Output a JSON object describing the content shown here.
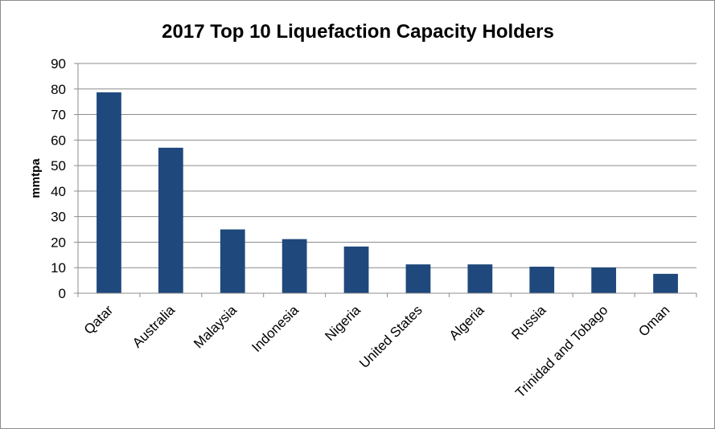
{
  "chart_data": {
    "type": "bar",
    "title": "2017 Top 10 Liquefaction Capacity Holders",
    "xlabel": "",
    "ylabel": "mmtpa",
    "categories": [
      "Qatar",
      "Australia",
      "Malaysia",
      "Indonesia",
      "Nigeria",
      "United States",
      "Algeria",
      "Russia",
      "Trinidad and Tobago",
      "Oman"
    ],
    "values": [
      78.7,
      57.0,
      25.0,
      21.2,
      18.3,
      11.3,
      11.3,
      10.4,
      10.1,
      7.6
    ],
    "ylim": [
      0,
      90
    ],
    "yticks": [
      0,
      10,
      20,
      30,
      40,
      50,
      60,
      70,
      80,
      90
    ],
    "grid": true,
    "legend": "none",
    "bar_color": "#1f497d"
  }
}
